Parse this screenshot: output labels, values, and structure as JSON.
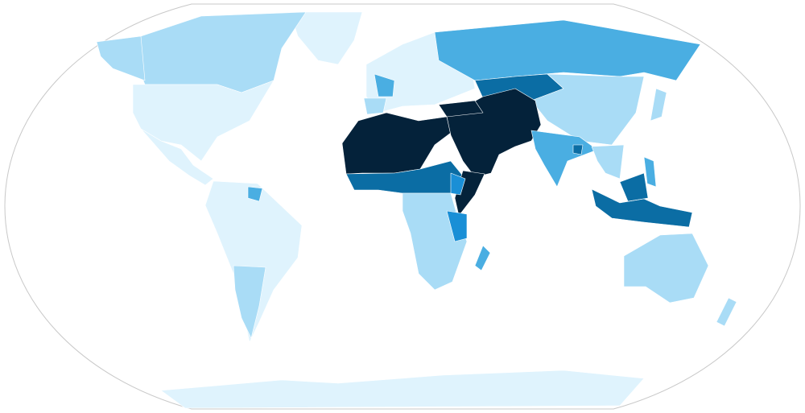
{
  "map": {
    "projection": "Robinson",
    "ocean_color": "#ffffff",
    "outline_color": "#c8c8c8",
    "colors": {
      "l0": "#dff3fd",
      "l1": "#a9dcf6",
      "l2": "#4aaee2",
      "l3": "#1a8fd6",
      "l4": "#0b6da4",
      "l5": "#04223a"
    }
  }
}
